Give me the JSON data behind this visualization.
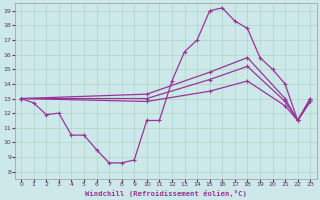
{
  "xlabel": "Windchill (Refroidissement éolien,°C)",
  "background_color": "#cde8e8",
  "grid_color": "#b0d4c8",
  "line_color": "#993399",
  "xlim": [
    -0.5,
    23.5
  ],
  "ylim": [
    7.5,
    19.5
  ],
  "yticks": [
    8,
    9,
    10,
    11,
    12,
    13,
    14,
    15,
    16,
    17,
    18,
    19
  ],
  "xticks": [
    0,
    1,
    2,
    3,
    4,
    5,
    6,
    7,
    8,
    9,
    10,
    11,
    12,
    13,
    14,
    15,
    16,
    17,
    18,
    19,
    20,
    21,
    22,
    23
  ],
  "series": [
    {
      "x": [
        0,
        1,
        2,
        3,
        4,
        5,
        6,
        7,
        8,
        9,
        10,
        11,
        12,
        13,
        14,
        15,
        16,
        17,
        18,
        19,
        20,
        21,
        22,
        23
      ],
      "y": [
        13.0,
        12.7,
        11.9,
        12.0,
        10.5,
        10.5,
        9.5,
        8.6,
        8.6,
        8.8,
        11.5,
        11.5,
        14.2,
        16.2,
        17.0,
        19.0,
        19.2,
        18.3,
        17.8,
        15.8,
        15.0,
        14.0,
        11.5,
        13.0
      ]
    },
    {
      "x": [
        0,
        10,
        15,
        18,
        21,
        22,
        23
      ],
      "y": [
        13.0,
        13.3,
        14.8,
        15.8,
        13.0,
        11.5,
        13.0
      ]
    },
    {
      "x": [
        0,
        10,
        15,
        18,
        21,
        22,
        23
      ],
      "y": [
        13.0,
        13.0,
        14.3,
        15.2,
        12.8,
        11.5,
        12.8
      ]
    },
    {
      "x": [
        0,
        10,
        15,
        18,
        21,
        22,
        23
      ],
      "y": [
        13.0,
        12.8,
        13.5,
        14.2,
        12.5,
        11.5,
        12.8
      ]
    }
  ]
}
